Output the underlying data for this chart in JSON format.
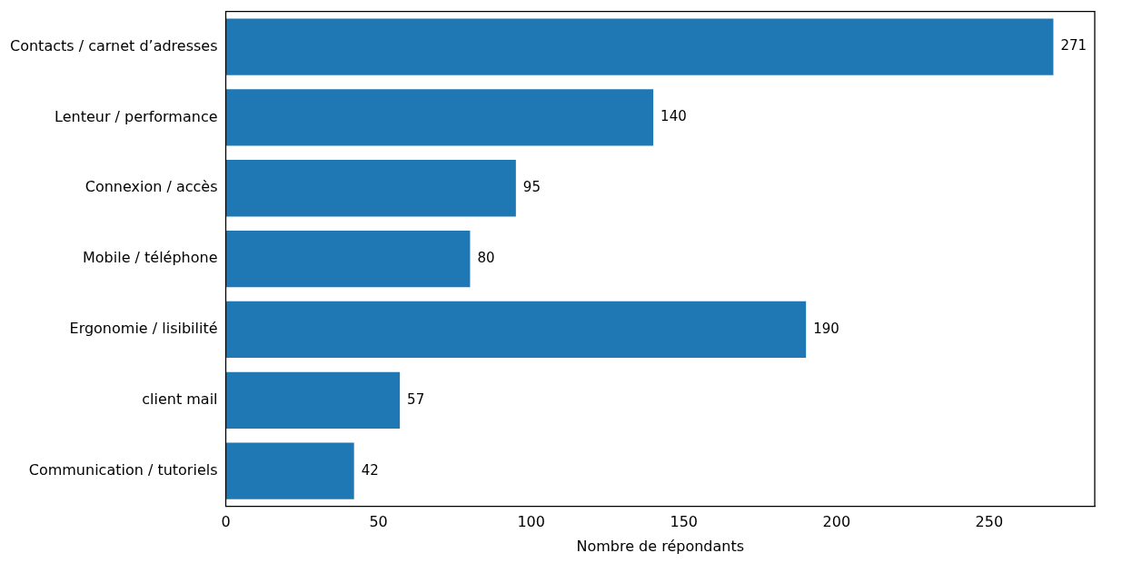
{
  "chart_data": {
    "type": "bar",
    "orientation": "horizontal",
    "xlabel": "Nombre de répondants",
    "categories": [
      "Contacts / carnet d’adresses",
      "Lenteur / performance",
      "Connexion / accès",
      "Mobile / téléphone",
      "Ergonomie / lisibilité",
      "client mail",
      "Communication / tutoriels"
    ],
    "values": [
      271,
      140,
      95,
      80,
      190,
      57,
      42
    ],
    "color": "#1f77b4",
    "xlim": [
      0,
      284.55
    ],
    "xticks": [
      0,
      50,
      100,
      150,
      200,
      250
    ],
    "grid": false,
    "legend": false,
    "data_labels": true
  }
}
